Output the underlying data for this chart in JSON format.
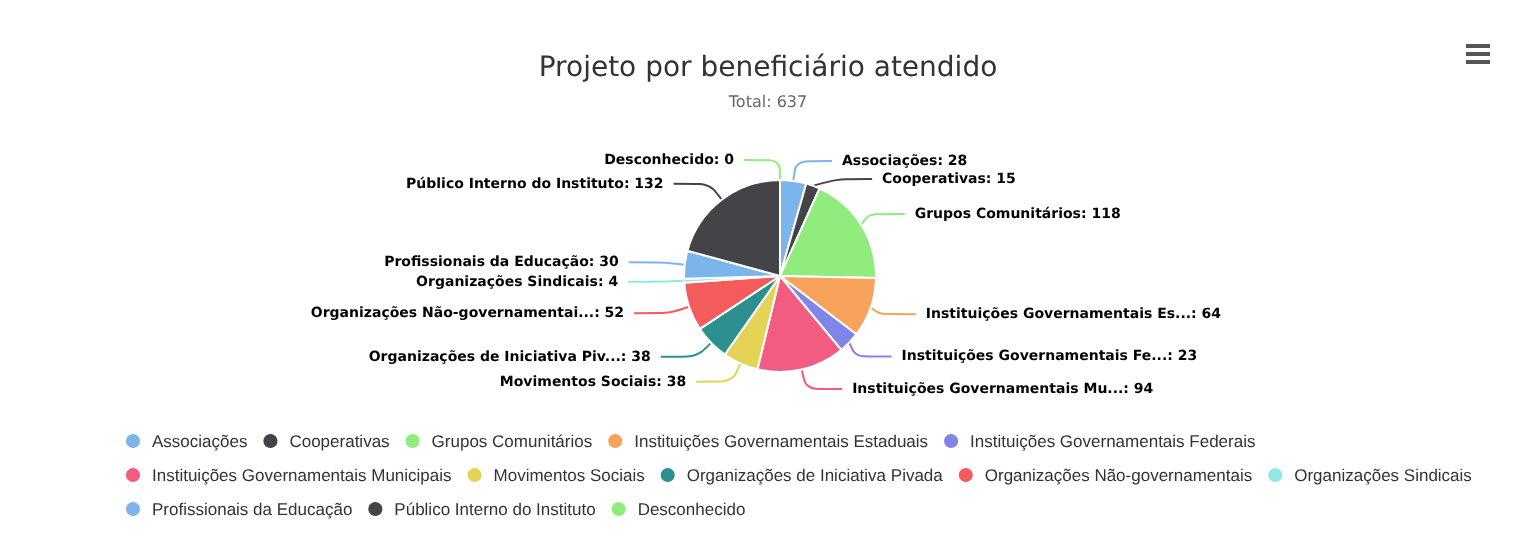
{
  "chart_data": {
    "type": "pie",
    "title": "Projeto por beneficiário atendido",
    "subtitle": "Total: 637",
    "categories": [
      "Associações",
      "Cooperativas",
      "Grupos Comunitários",
      "Instituições Governamentais Estaduais",
      "Instituições Governamentais Federais",
      "Instituições Governamentais Municipais",
      "Movimentos Sociais",
      "Organizações de Iniciativa Pivada",
      "Organizações Não-governamentais",
      "Organizações Sindicais",
      "Profissionais da Educação",
      "Público Interno do Instituto",
      "Desconhecido"
    ],
    "values": [
      28,
      15,
      118,
      64,
      23,
      94,
      38,
      38,
      52,
      4,
      30,
      132,
      0
    ],
    "value_labels": [
      "Associações: 28",
      "Cooperativas: 15",
      "Grupos Comunitários: 118",
      "Instituições Governamentais Es...: 64",
      "Instituições Governamentais Fe...: 23",
      "Instituições Governamentais Mu...: 94",
      "Movimentos Sociais: 38",
      "Organizações de Iniciativa Piv...: 38",
      "Organizações Não-governamentai...: 52",
      "Organizações Sindicais: 4",
      "Profissionais da Educação: 30",
      "Público Interno do Instituto: 132",
      "Desconhecido: 0"
    ],
    "colors": [
      "#7cb5ec",
      "#434348",
      "#90ed7d",
      "#f7a35c",
      "#8085e9",
      "#f15c80",
      "#e4d354",
      "#2b908f",
      "#f45b5b",
      "#91e8e1",
      "#7cb5ec",
      "#434348",
      "#90ed7d"
    ],
    "legend": "bottom"
  }
}
